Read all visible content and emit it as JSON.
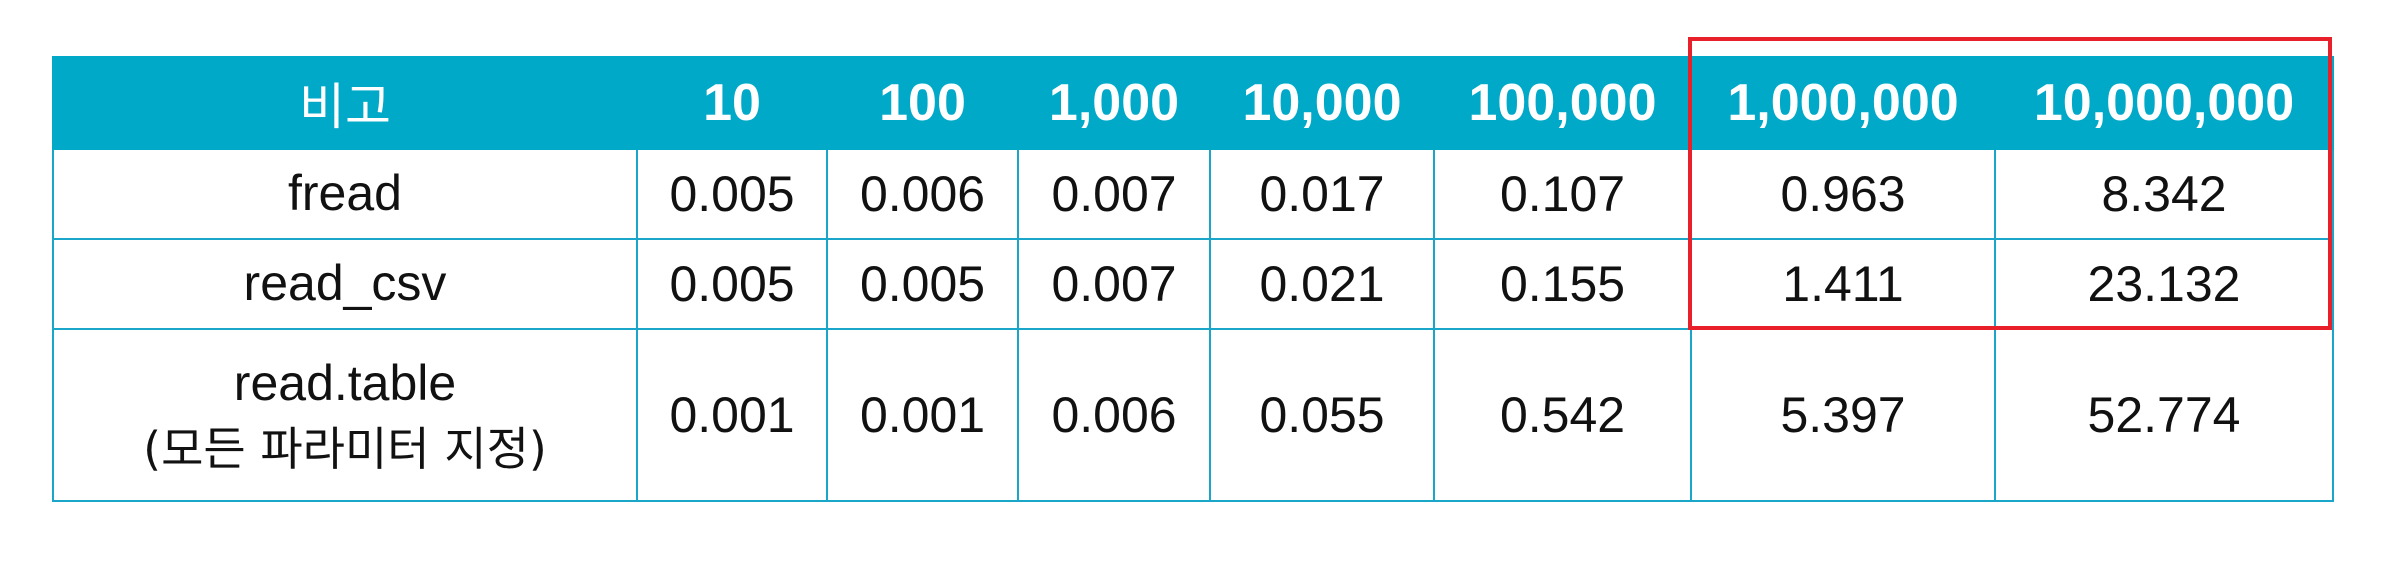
{
  "table": {
    "headers": [
      "비고",
      "10",
      "100",
      "1,000",
      "10,000",
      "100,000",
      "1,000,000",
      "10,000,000"
    ],
    "rows": [
      {
        "label": "fread",
        "sublabel": "",
        "values": [
          "0.005",
          "0.006",
          "0.007",
          "0.017",
          "0.107",
          "0.963",
          "8.342"
        ]
      },
      {
        "label": "read_csv",
        "sublabel": "",
        "values": [
          "0.005",
          "0.005",
          "0.007",
          "0.021",
          "0.155",
          "1.411",
          "23.132"
        ]
      },
      {
        "label": "read.table",
        "sublabel": "(모든 파라미터 지정)",
        "values": [
          "0.001",
          "0.001",
          "0.006",
          "0.055",
          "0.542",
          "5.397",
          "52.774"
        ]
      }
    ]
  },
  "colors": {
    "header_bg": "#01a9c9",
    "border": "#19a6c8",
    "highlight": "#e8202a"
  }
}
